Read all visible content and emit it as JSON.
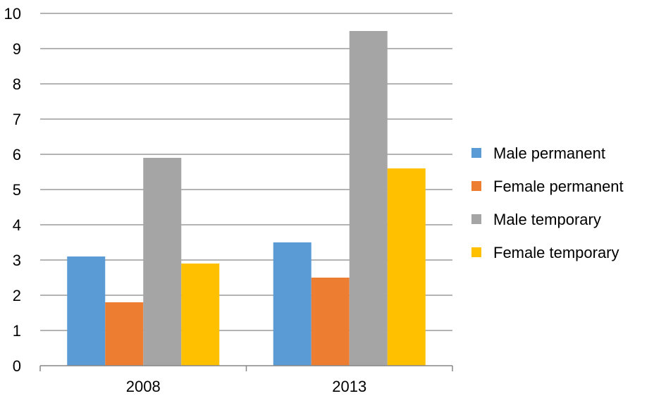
{
  "chart_data": {
    "type": "bar",
    "categories": [
      "2008",
      "2013"
    ],
    "series": [
      {
        "name": "Male permanent",
        "color": "#5b9bd5",
        "values": [
          3.1,
          3.5
        ]
      },
      {
        "name": "Female permanent",
        "color": "#ed7d31",
        "values": [
          1.8,
          2.5
        ]
      },
      {
        "name": "Male temporary",
        "color": "#a5a5a5",
        "values": [
          5.9,
          9.5
        ]
      },
      {
        "name": "Female temporary",
        "color": "#ffc000",
        "values": [
          2.9,
          5.6
        ]
      }
    ],
    "ylim": [
      0,
      10
    ],
    "yticks": [
      "0",
      "1",
      "2",
      "3",
      "4",
      "5",
      "6",
      "7",
      "8",
      "9",
      "10"
    ],
    "grid": true,
    "legend_position": "right"
  }
}
